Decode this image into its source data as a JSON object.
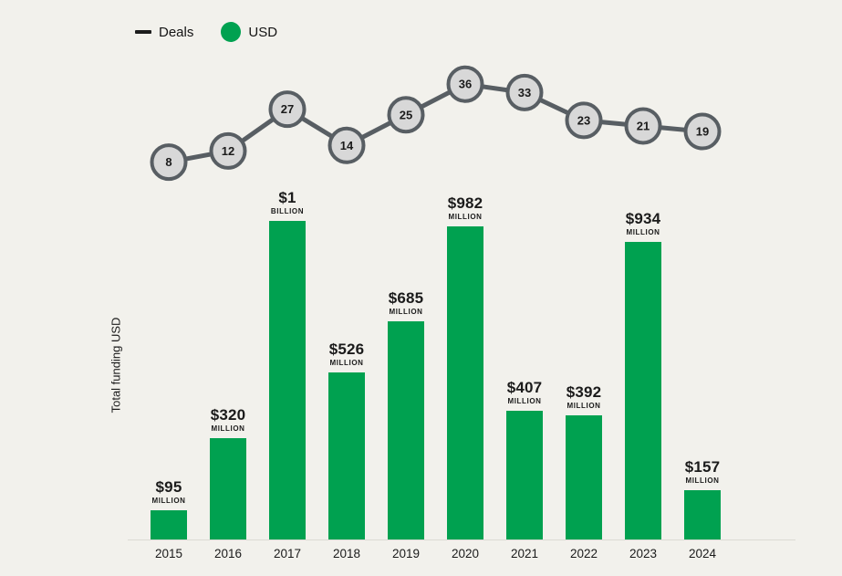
{
  "legend": {
    "deals_label": "Deals",
    "usd_label": "USD"
  },
  "colors": {
    "bar_green": "#00a150",
    "node_fill": "#d8d8d8",
    "node_stroke": "#585e63",
    "line_stroke": "#585e63",
    "background": "#f2f1ec",
    "text": "#1b1b1b",
    "axis_line": "#dbdbd4"
  },
  "chart_data": [
    {
      "type": "line",
      "name": "Deals",
      "categories": [
        "2015",
        "2016",
        "2017",
        "2018",
        "2019",
        "2020",
        "2021",
        "2022",
        "2023",
        "2024"
      ],
      "values": [
        8,
        12,
        27,
        14,
        25,
        36,
        33,
        23,
        21,
        19
      ],
      "marker": "circle-with-value",
      "legend_position": "top-left",
      "grid": false
    },
    {
      "type": "bar",
      "name": "USD",
      "categories": [
        "2015",
        "2016",
        "2017",
        "2018",
        "2019",
        "2020",
        "2021",
        "2022",
        "2023",
        "2024"
      ],
      "values_usd_millions": [
        95,
        320,
        1000,
        526,
        685,
        982,
        407,
        392,
        934,
        157
      ],
      "labels": [
        {
          "amount": "$95",
          "unit": "MILLION"
        },
        {
          "amount": "$320",
          "unit": "MILLION"
        },
        {
          "amount": "$1",
          "unit": "BILLION"
        },
        {
          "amount": "$526",
          "unit": "MILLION"
        },
        {
          "amount": "$685",
          "unit": "MILLION"
        },
        {
          "amount": "$982",
          "unit": "MILLION"
        },
        {
          "amount": "$407",
          "unit": "MILLION"
        },
        {
          "amount": "$392",
          "unit": "MILLION"
        },
        {
          "amount": "$934",
          "unit": "MILLION"
        },
        {
          "amount": "$157",
          "unit": "MILLION"
        }
      ],
      "xlabel": "",
      "ylabel": "Total funding USD",
      "ylim_millions": [
        0,
        1050
      ],
      "grid": false
    }
  ]
}
